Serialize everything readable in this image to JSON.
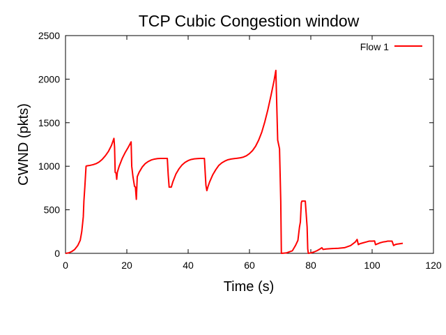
{
  "chart_data": {
    "type": "line",
    "title": "TCP Cubic Congestion window",
    "xlabel": "Time (s)",
    "ylabel": "CWND (pkts)",
    "xlim": [
      0,
      120
    ],
    "ylim": [
      0,
      2500
    ],
    "xticks": [
      "0",
      "20",
      "40",
      "60",
      "80",
      "100",
      "120"
    ],
    "yticks": [
      "0",
      "500",
      "1000",
      "1500",
      "2000",
      "2500"
    ],
    "grid": false,
    "legend_position": "top-right",
    "series": [
      {
        "name": "Flow 1",
        "color": "#ff0000",
        "points": [
          [
            0,
            0
          ],
          [
            1,
            5
          ],
          [
            2,
            20
          ],
          [
            3,
            45
          ],
          [
            4,
            90
          ],
          [
            4.8,
            150
          ],
          [
            5.3,
            250
          ],
          [
            5.6,
            350
          ],
          [
            5.8,
            420
          ],
          [
            6.0,
            600
          ],
          [
            6.3,
            760
          ],
          [
            6.7,
            1000
          ],
          [
            7,
            1005
          ],
          [
            8,
            1010
          ],
          [
            9,
            1018
          ],
          [
            10,
            1030
          ],
          [
            11,
            1050
          ],
          [
            12,
            1080
          ],
          [
            13,
            1120
          ],
          [
            14,
            1170
          ],
          [
            15,
            1240
          ],
          [
            15.8,
            1320
          ],
          [
            16.0,
            1220
          ],
          [
            16.2,
            930
          ],
          [
            16.5,
            920
          ],
          [
            16.7,
            850
          ],
          [
            16.9,
            930
          ],
          [
            17.5,
            1000
          ],
          [
            18.5,
            1090
          ],
          [
            19.5,
            1160
          ],
          [
            20.5,
            1220
          ],
          [
            21.4,
            1280
          ],
          [
            21.6,
            1000
          ],
          [
            22,
            880
          ],
          [
            22.5,
            770
          ],
          [
            22.8,
            760
          ],
          [
            23.1,
            620
          ],
          [
            23.4,
            880
          ],
          [
            24,
            930
          ],
          [
            25,
            990
          ],
          [
            26,
            1030
          ],
          [
            27,
            1055
          ],
          [
            28,
            1072
          ],
          [
            29,
            1082
          ],
          [
            30,
            1088
          ],
          [
            31,
            1090
          ],
          [
            32,
            1090
          ],
          [
            33.2,
            1090
          ],
          [
            33.5,
            900
          ],
          [
            33.8,
            760
          ],
          [
            34.5,
            760
          ],
          [
            35,
            820
          ],
          [
            36,
            910
          ],
          [
            37,
            970
          ],
          [
            38,
            1015
          ],
          [
            39,
            1045
          ],
          [
            40,
            1065
          ],
          [
            41,
            1078
          ],
          [
            42,
            1085
          ],
          [
            43,
            1088
          ],
          [
            44,
            1090
          ],
          [
            45.3,
            1090
          ],
          [
            45.6,
            900
          ],
          [
            45.8,
            780
          ],
          [
            46.1,
            720
          ],
          [
            46.5,
            770
          ],
          [
            47,
            820
          ],
          [
            48,
            900
          ],
          [
            49,
            960
          ],
          [
            50,
            1010
          ],
          [
            51,
            1040
          ],
          [
            52,
            1060
          ],
          [
            53,
            1075
          ],
          [
            54,
            1083
          ],
          [
            55,
            1088
          ],
          [
            56,
            1092
          ],
          [
            57,
            1097
          ],
          [
            58,
            1105
          ],
          [
            59,
            1120
          ],
          [
            60,
            1145
          ],
          [
            61,
            1180
          ],
          [
            62,
            1230
          ],
          [
            63,
            1300
          ],
          [
            64,
            1390
          ],
          [
            65,
            1510
          ],
          [
            66,
            1650
          ],
          [
            67,
            1810
          ],
          [
            68,
            1980
          ],
          [
            68.6,
            2100
          ],
          [
            68.9,
            1700
          ],
          [
            69.2,
            1300
          ],
          [
            69.5,
            1250
          ],
          [
            69.8,
            1200
          ],
          [
            70.2,
            600
          ],
          [
            70.4,
            0
          ],
          [
            72,
            5
          ],
          [
            74,
            30
          ],
          [
            75,
            90
          ],
          [
            75.8,
            150
          ],
          [
            76.3,
            300
          ],
          [
            76.6,
            360
          ],
          [
            76.9,
            580
          ],
          [
            77.1,
            600
          ],
          [
            78.2,
            600
          ],
          [
            78.8,
            300
          ],
          [
            79.0,
            50
          ],
          [
            79.2,
            0
          ],
          [
            80,
            5
          ],
          [
            81,
            15
          ],
          [
            82,
            30
          ],
          [
            83,
            50
          ],
          [
            83.6,
            65
          ],
          [
            84,
            45
          ],
          [
            85,
            50
          ],
          [
            87,
            55
          ],
          [
            89,
            58
          ],
          [
            91,
            65
          ],
          [
            93,
            90
          ],
          [
            94.5,
            130
          ],
          [
            95.1,
            160
          ],
          [
            95.5,
            100
          ],
          [
            96,
            110
          ],
          [
            97,
            120
          ],
          [
            98,
            130
          ],
          [
            99,
            140
          ],
          [
            100,
            140
          ],
          [
            100.8,
            142
          ],
          [
            101.1,
            100
          ],
          [
            101.8,
            110
          ],
          [
            102.5,
            120
          ],
          [
            103.5,
            130
          ],
          [
            104.5,
            135
          ],
          [
            105,
            140
          ],
          [
            106,
            140
          ],
          [
            106.5,
            140
          ],
          [
            107,
            90
          ],
          [
            107.5,
            100
          ],
          [
            108,
            105
          ],
          [
            109,
            110
          ],
          [
            110,
            115
          ]
        ]
      }
    ]
  }
}
